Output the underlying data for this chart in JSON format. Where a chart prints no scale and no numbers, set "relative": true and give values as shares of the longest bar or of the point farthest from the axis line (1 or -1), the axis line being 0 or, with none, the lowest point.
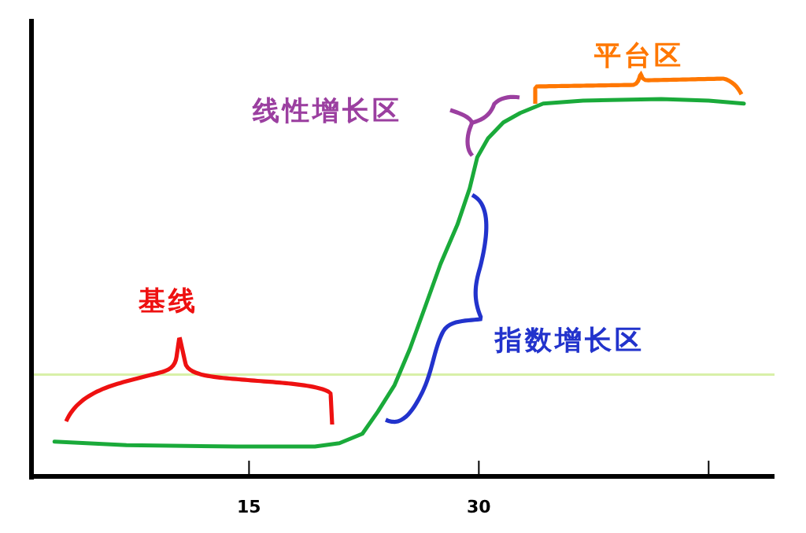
{
  "chart_data": {
    "type": "line",
    "relative": true,
    "x": [
      2.3,
      7.0,
      14.2,
      19.3,
      20.9,
      22.4,
      23.4,
      24.5,
      25.5,
      26.5,
      27.5,
      28.6,
      29.4,
      29.9,
      30.6,
      31.6,
      32.7,
      34.2,
      36.8,
      41.9,
      45.0,
      47.3
    ],
    "series": [
      {
        "color": "#1aaa3a",
        "values": [
          0.092,
          0.083,
          0.079,
          0.079,
          0.088,
          0.113,
          0.171,
          0.242,
          0.338,
          0.45,
          0.563,
          0.667,
          0.763,
          0.846,
          0.896,
          0.938,
          0.963,
          0.988,
          0.996,
          1.0,
          0.996,
          0.988
        ]
      }
    ],
    "xlim": [
      0.8,
      49.3
    ],
    "xticks": [
      15,
      30,
      {
        "value": 45,
        "label": null
      }
    ],
    "tick_labels": "x",
    "ref_lines": [
      {
        "axis": "y",
        "value": 0.27,
        "color": "#d8f0a8"
      }
    ],
    "annotations": [
      "基线",
      "指数增长区",
      "线性增长区",
      "平台区"
    ],
    "grid": false,
    "marker": "none",
    "line_style": "solid"
  }
}
